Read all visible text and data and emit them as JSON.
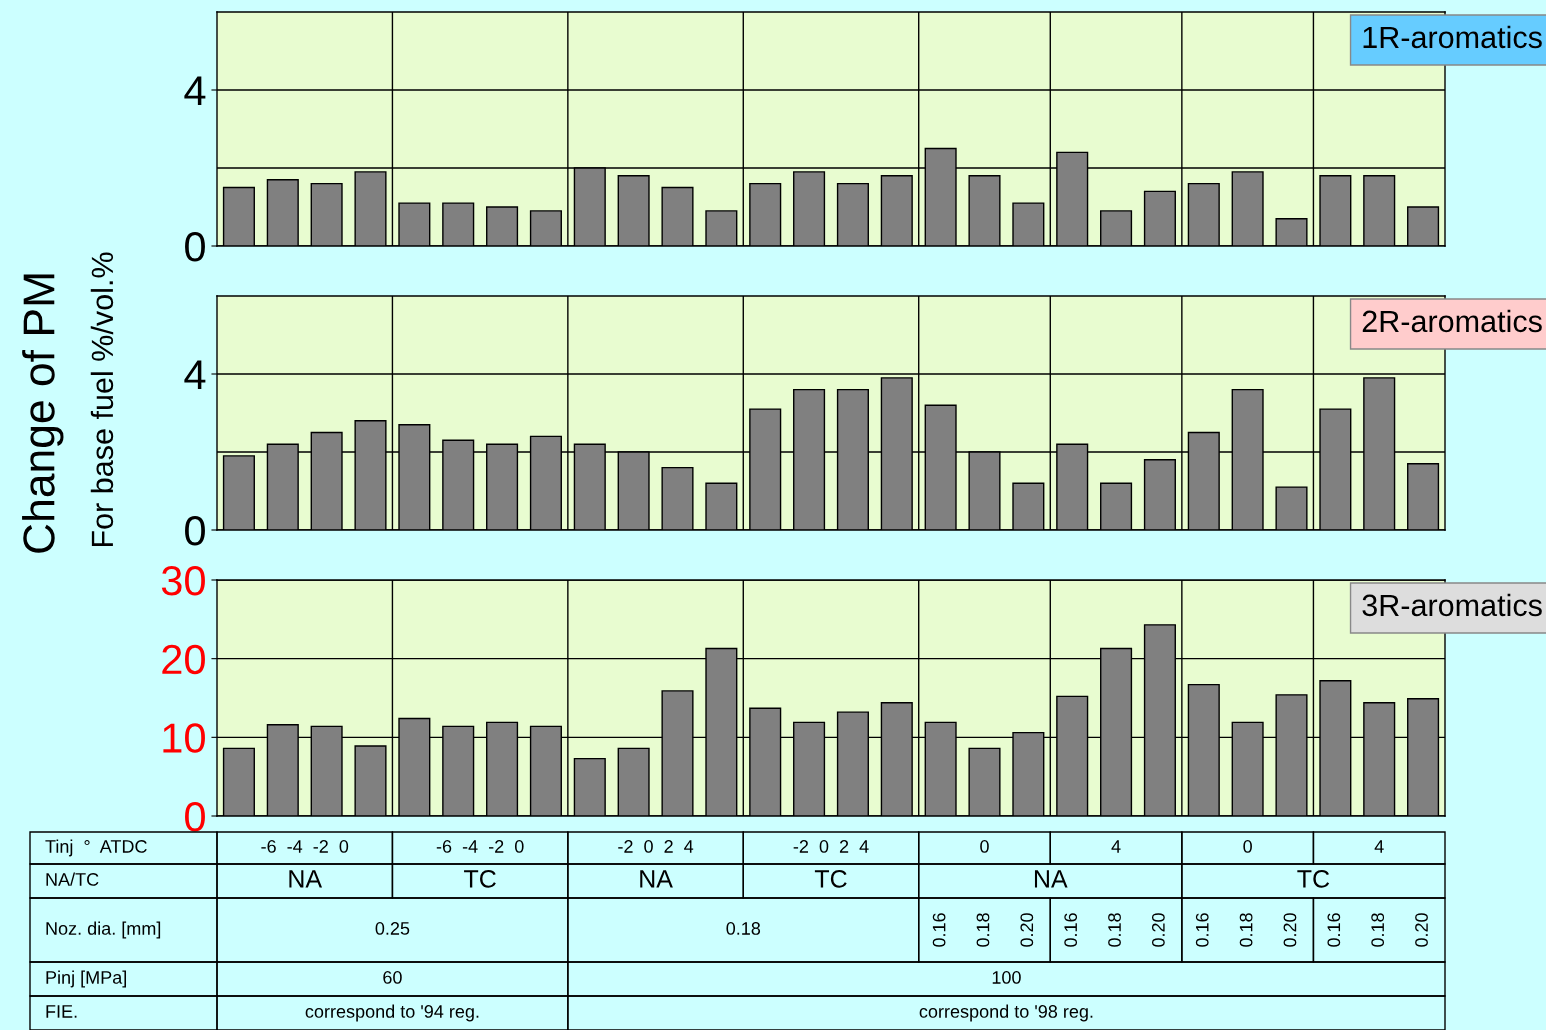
{
  "chart_data": [
    {
      "type": "bar",
      "categories": [
        null,
        null,
        null,
        null,
        null,
        null,
        null,
        null,
        null,
        null,
        null,
        null,
        null,
        null,
        null,
        null,
        null,
        null,
        null,
        null,
        null,
        null,
        null,
        null,
        null,
        null,
        null,
        null
      ],
      "values": [
        1.5,
        1.7,
        1.6,
        1.9,
        1.1,
        1.1,
        1.0,
        0.9,
        2.0,
        1.8,
        1.5,
        0.9,
        1.6,
        1.9,
        1.6,
        1.8,
        2.5,
        1.8,
        1.1,
        2.4,
        0.9,
        1.4,
        1.6,
        1.9,
        0.7,
        1.8,
        1.8,
        1.0
      ],
      "color": "#808080",
      "ylim": [
        0,
        6
      ],
      "yticks": [
        0,
        4
      ],
      "grid": "y",
      "tick_labels": "y",
      "ref_lines": [
        {
          "axis": "y",
          "value": 2
        }
      ],
      "annotations": [
        "1R-aromatics"
      ]
    },
    {
      "type": "bar",
      "categories": [
        null,
        null,
        null,
        null,
        null,
        null,
        null,
        null,
        null,
        null,
        null,
        null,
        null,
        null,
        null,
        null,
        null,
        null,
        null,
        null,
        null,
        null,
        null,
        null,
        null,
        null,
        null,
        null
      ],
      "values": [
        1.9,
        2.2,
        2.5,
        2.8,
        2.7,
        2.3,
        2.2,
        2.4,
        2.2,
        2.0,
        1.6,
        1.2,
        3.1,
        3.6,
        3.6,
        3.9,
        3.2,
        2.0,
        1.2,
        2.2,
        1.2,
        1.8,
        2.5,
        3.6,
        1.1,
        3.1,
        3.9,
        1.7
      ],
      "color": "#808080",
      "ylim": [
        0,
        6
      ],
      "yticks": [
        0,
        4
      ],
      "grid": "y",
      "tick_labels": "y",
      "ref_lines": [
        {
          "axis": "y",
          "value": 2
        }
      ],
      "ylabel": "Change of PM",
      "annotations": [
        "2R-aromatics",
        "For base fuel %/vol.%"
      ]
    },
    {
      "type": "bar",
      "categories": [
        null,
        null,
        null,
        null,
        null,
        null,
        null,
        null,
        null,
        null,
        null,
        null,
        null,
        null,
        null,
        null,
        null,
        null,
        null,
        null,
        null,
        null,
        null,
        null,
        null,
        null,
        null,
        null
      ],
      "values": [
        8.6,
        11.6,
        11.4,
        8.9,
        12.4,
        11.4,
        11.9,
        11.4,
        7.3,
        8.6,
        15.9,
        21.3,
        13.7,
        11.9,
        13.2,
        14.4,
        11.9,
        8.6,
        10.6,
        15.2,
        21.3,
        24.3,
        16.7,
        11.9,
        15.4,
        17.2,
        14.4,
        14.9
      ],
      "color": "#808080",
      "ylim": [
        0,
        30
      ],
      "yticks": [
        0,
        10,
        20,
        30
      ],
      "grid": "y",
      "tick_labels": "y",
      "annotations": [
        "3R-aromatics",
        "Tinj  °  ATDC",
        "-6  -4  -2  0",
        "-6  -4  -2  0",
        "-2  0  2  4",
        "-2  0  2  4",
        "0",
        "4",
        "0",
        "4",
        "NA/TC",
        "NA",
        "TC",
        "NA",
        "TC",
        "NA",
        "TC",
        "Noz. dia. [mm]",
        "0.25",
        "0.18",
        "0.16",
        "0.18",
        "0.20",
        "0.16",
        "0.18",
        "0.20",
        "0.16",
        "0.18",
        "0.20",
        "0.16",
        "0.18",
        "0.20",
        "Pinj [MPa]",
        "60",
        "100",
        "FIE.",
        "correspond to '94 reg.",
        "correspond to '98 reg."
      ]
    }
  ]
}
